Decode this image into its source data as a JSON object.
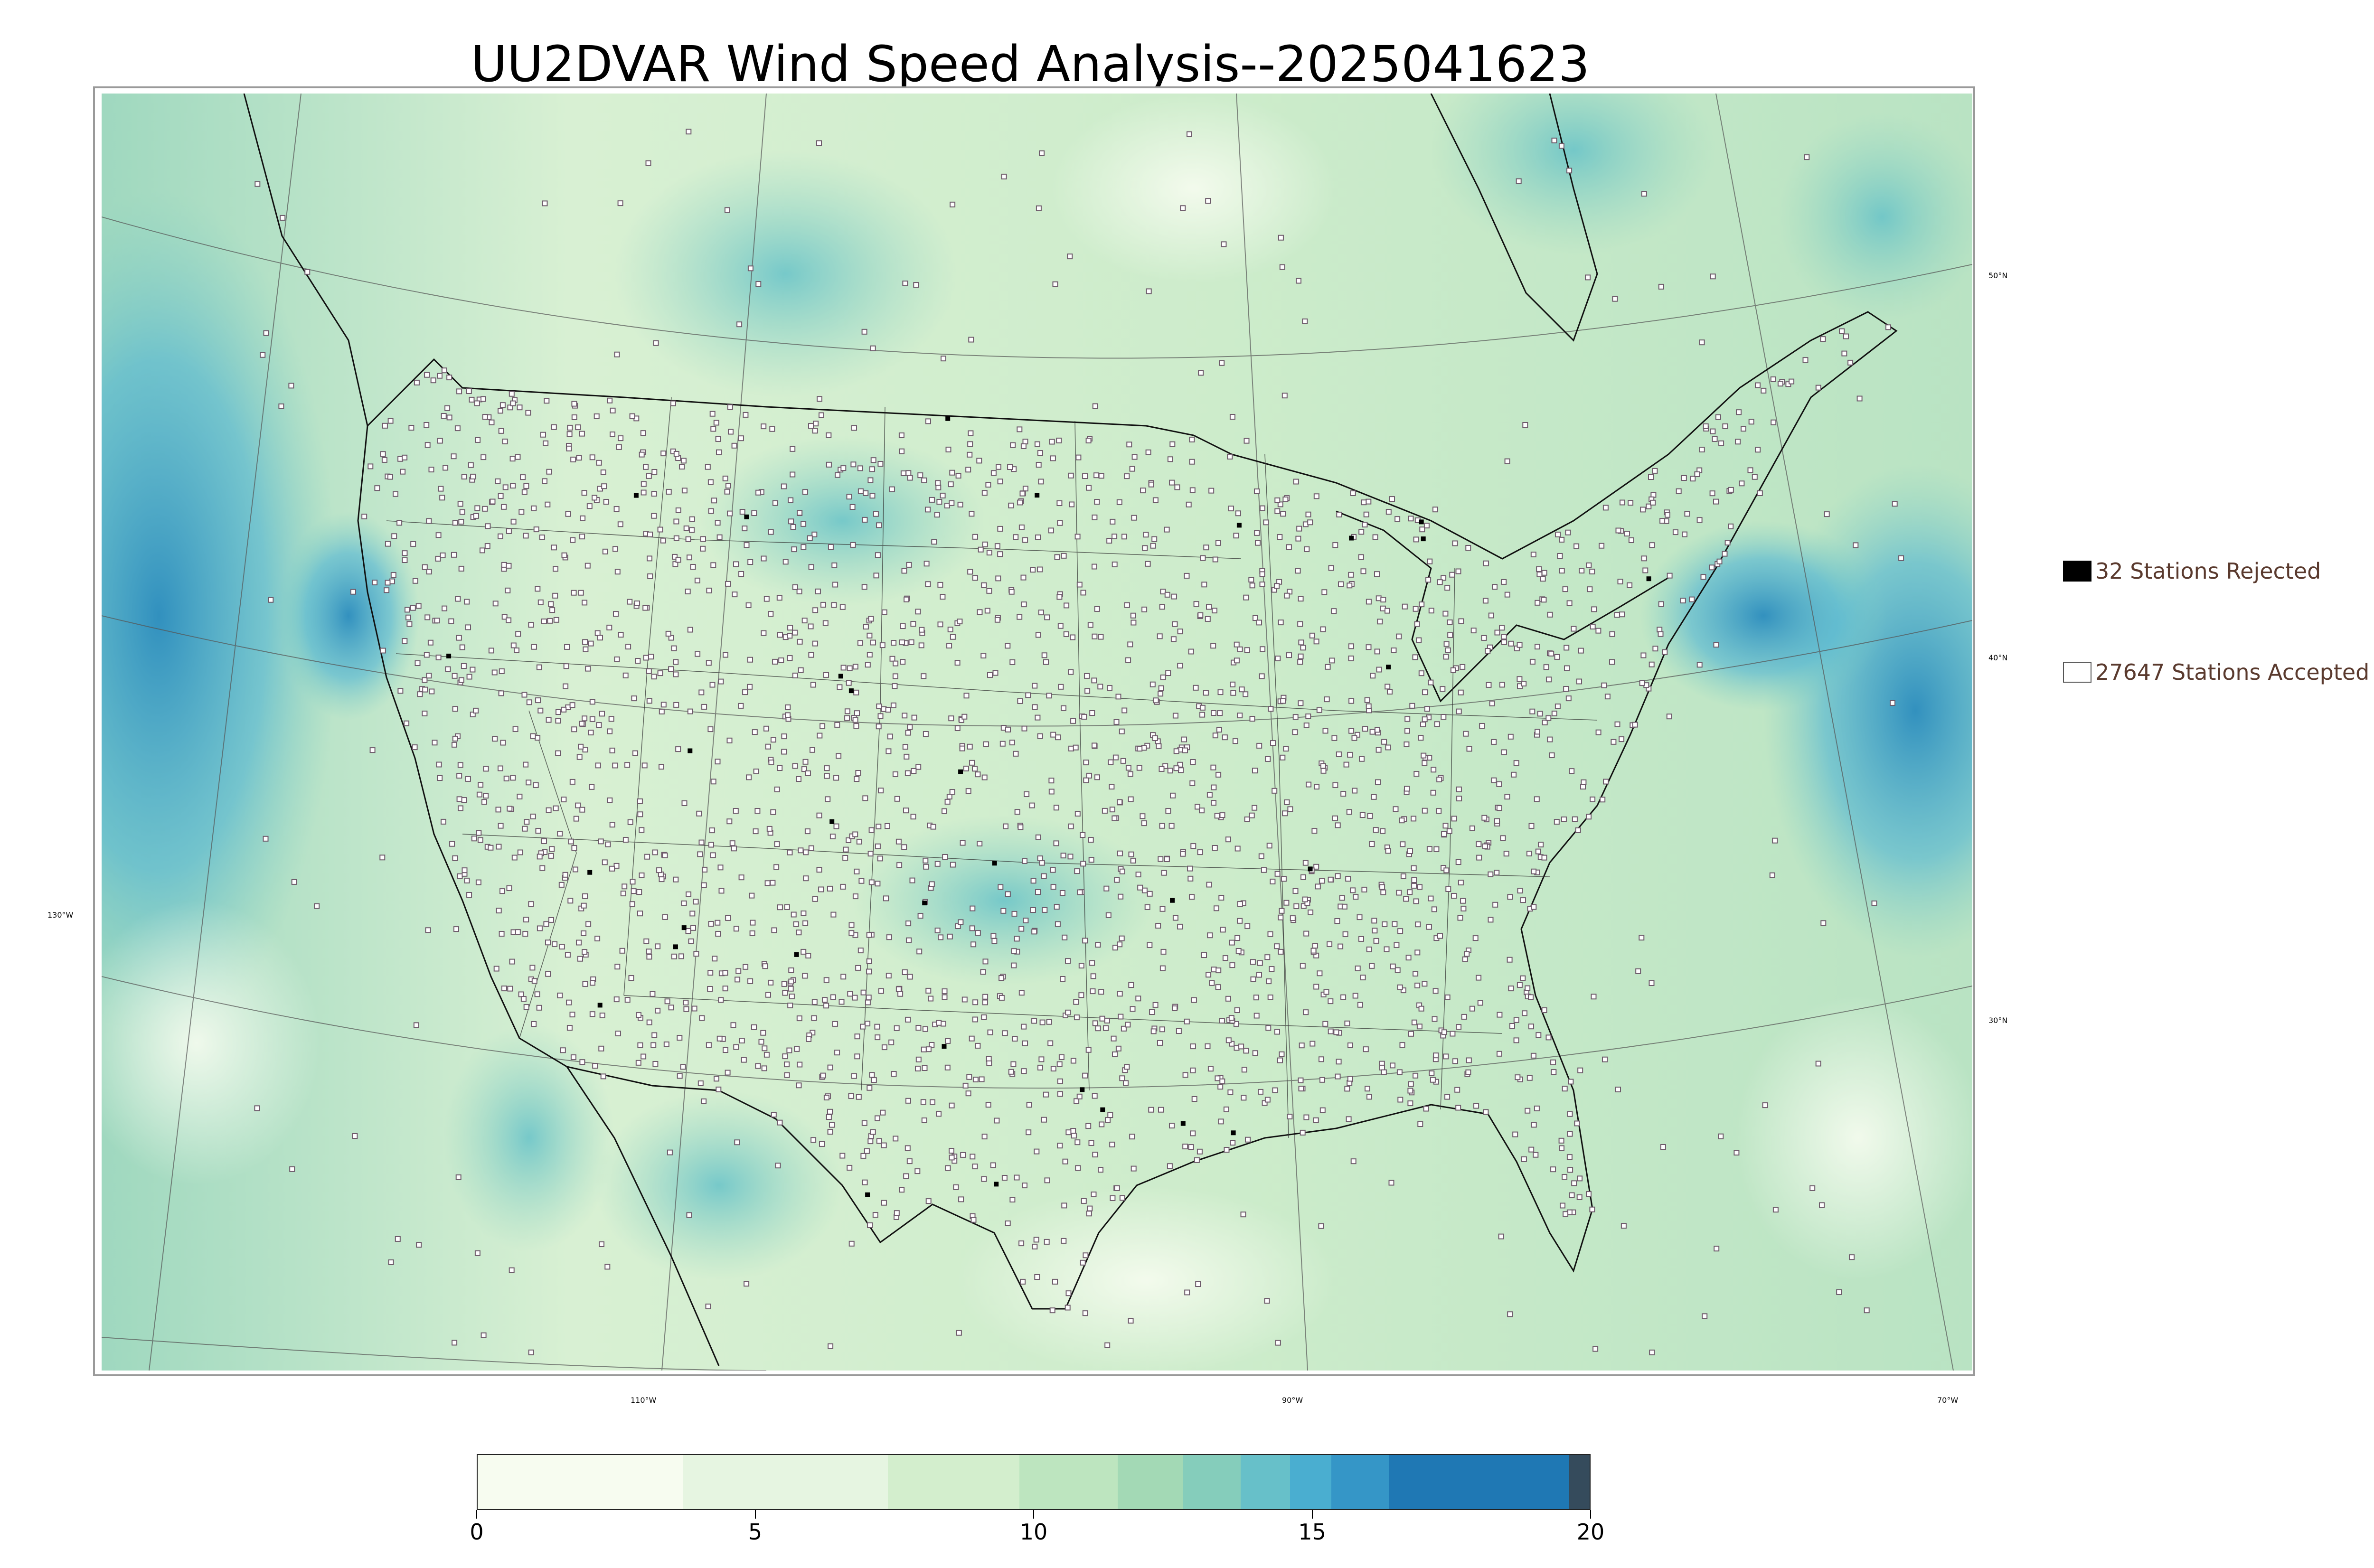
{
  "title": "UU2DVAR Wind Speed Analysis--2025041623",
  "map": {
    "region": "Contiguous United States",
    "colors": {
      "low": "#f7fcf0",
      "mid": "#a8ddb5",
      "high": "#2b8cbe",
      "max": "#354b5c"
    },
    "longitude_labels": [
      "130°W",
      "110°W",
      "90°W",
      "70°W"
    ],
    "latitude_labels": [
      "50°N",
      "40°N",
      "30°N"
    ]
  },
  "legend": {
    "rejected": {
      "count": "32",
      "text": "32 Stations Rejected",
      "color": "#000000"
    },
    "accepted": {
      "count": "27647",
      "text": "27647 Stations Accepted",
      "color": "#ffffff"
    }
  },
  "colorbar": {
    "min": 0,
    "max": 20,
    "ticks": [
      "0",
      "5",
      "10",
      "15",
      "20"
    ],
    "colors": [
      "#f7fcf0",
      "#e6f5e1",
      "#d3eecd",
      "#bde5bf",
      "#a3d9b5",
      "#85cdbb",
      "#67c0c9",
      "#4aaed0",
      "#3596c7",
      "#1f78b4",
      "#354b5c"
    ]
  }
}
